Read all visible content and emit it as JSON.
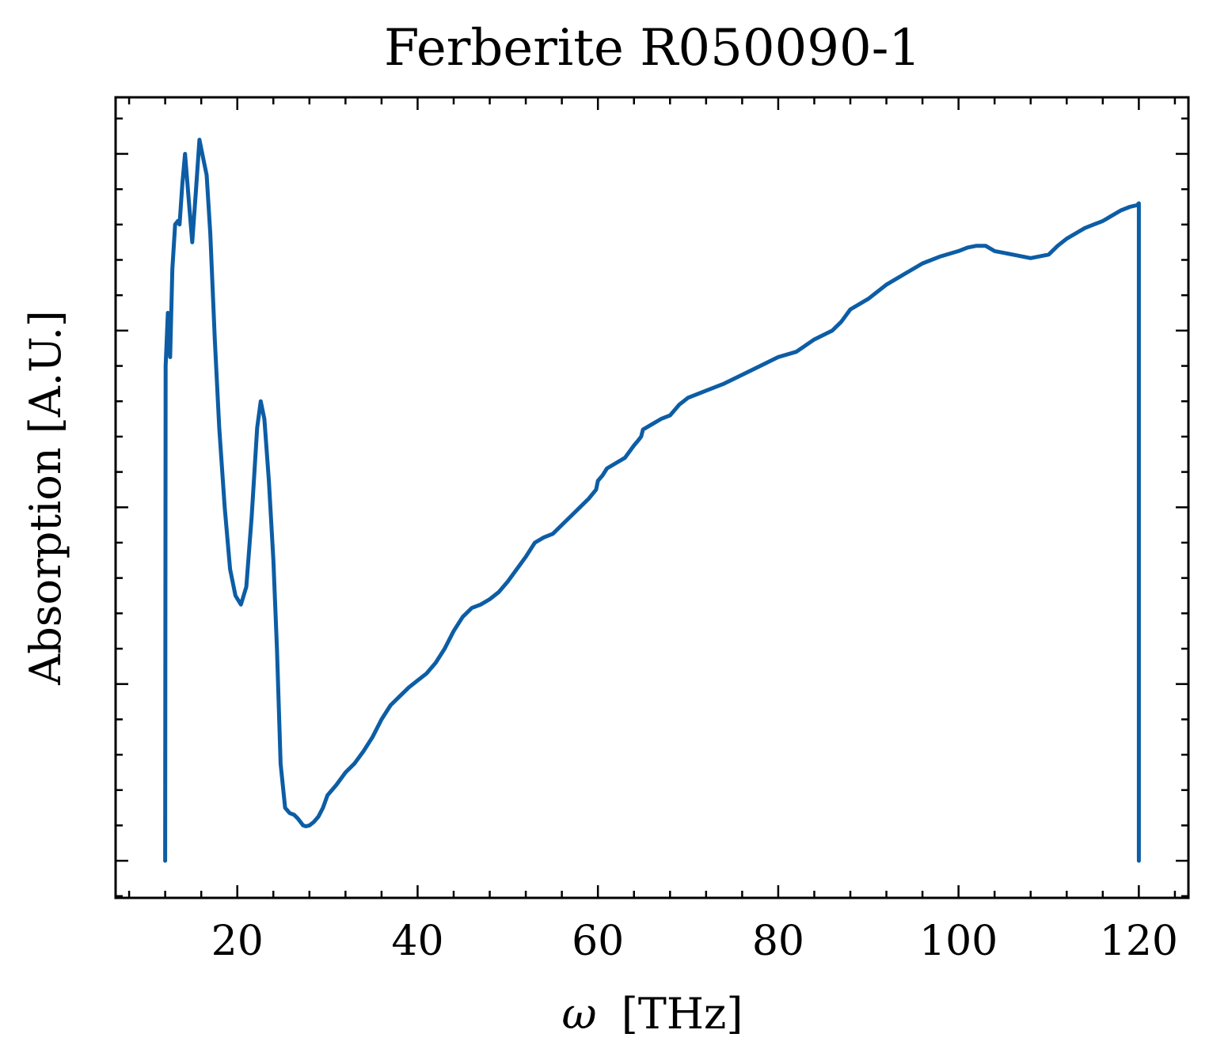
{
  "chart_data": {
    "type": "line",
    "title": "Ferberite R050090-1",
    "xlabel_symbol": "ω",
    "xlabel_unit": "[THz]",
    "ylabel": "Absorption [A.U.]",
    "xlim": [
      6.5,
      125.5
    ],
    "ylim": [
      -0.21,
      4.32
    ],
    "x_ticks": [
      20,
      40,
      60,
      80,
      100,
      120
    ],
    "x_tick_labels": [
      "20",
      "40",
      "60",
      "80",
      "100",
      "120"
    ],
    "y_major_ticks": [
      0,
      1,
      2,
      3,
      4
    ],
    "y_minor_step": 0.2,
    "x_minor_step": 4,
    "grid": false,
    "tick_direction": "in",
    "series": [
      {
        "color": "#0c5da5",
        "x": [
          12.0,
          12.05,
          12.3,
          12.55,
          12.8,
          13.1,
          13.4,
          13.6,
          13.9,
          14.2,
          14.6,
          15.0,
          15.4,
          15.8,
          16.2,
          16.6,
          17.0,
          17.5,
          18.0,
          18.6,
          19.2,
          19.8,
          20.4,
          21.0,
          21.6,
          22.2,
          22.6,
          23.0,
          23.5,
          24.0,
          24.4,
          24.8,
          25.3,
          25.8,
          26.3,
          26.7,
          27.0,
          27.3,
          27.6,
          28.0,
          28.5,
          29.0,
          29.5,
          30.0,
          31.0,
          32.0,
          33.0,
          34.0,
          35.0,
          36.0,
          37.0,
          38.0,
          39.0,
          40.0,
          41.0,
          42.0,
          43.0,
          44.0,
          45.0,
          46.0,
          47.0,
          48.0,
          49.0,
          50.0,
          51.0,
          52.0,
          53.0,
          54.0,
          55.0,
          56.0,
          57.0,
          58.0,
          59.0,
          59.8,
          60.0,
          60.5,
          61.0,
          62.0,
          63.0,
          64.0,
          64.5,
          64.8,
          65.0,
          66.0,
          67.0,
          68.0,
          69.0,
          70.0,
          72.0,
          74.0,
          76.0,
          78.0,
          80.0,
          82.0,
          84.0,
          86.0,
          87.0,
          88.0,
          90.0,
          92.0,
          94.0,
          96.0,
          98.0,
          100.0,
          101.0,
          102.0,
          103.0,
          104.0,
          105.0,
          106.0,
          107.0,
          108.0,
          109.0,
          110.0,
          111.0,
          112.0,
          113.0,
          114.0,
          115.0,
          116.0,
          117.0,
          118.0,
          119.0,
          119.8,
          120.0,
          120.0
        ],
        "y": [
          0.0,
          2.8,
          3.1,
          2.85,
          3.35,
          3.6,
          3.62,
          3.6,
          3.83,
          4.0,
          3.75,
          3.5,
          3.78,
          4.08,
          3.98,
          3.88,
          3.55,
          2.95,
          2.45,
          2.0,
          1.65,
          1.5,
          1.45,
          1.55,
          1.95,
          2.45,
          2.6,
          2.5,
          2.15,
          1.7,
          1.2,
          0.55,
          0.3,
          0.27,
          0.26,
          0.24,
          0.22,
          0.2,
          0.195,
          0.2,
          0.22,
          0.25,
          0.3,
          0.37,
          0.43,
          0.5,
          0.55,
          0.62,
          0.7,
          0.8,
          0.88,
          0.93,
          0.98,
          1.02,
          1.06,
          1.12,
          1.2,
          1.3,
          1.38,
          1.43,
          1.45,
          1.48,
          1.52,
          1.58,
          1.65,
          1.72,
          1.8,
          1.83,
          1.85,
          1.9,
          1.95,
          2.0,
          2.05,
          2.1,
          2.15,
          2.18,
          2.22,
          2.25,
          2.28,
          2.35,
          2.38,
          2.4,
          2.44,
          2.47,
          2.5,
          2.52,
          2.58,
          2.62,
          2.66,
          2.7,
          2.75,
          2.8,
          2.85,
          2.88,
          2.95,
          3.0,
          3.05,
          3.12,
          3.18,
          3.26,
          3.32,
          3.38,
          3.42,
          3.45,
          3.47,
          3.48,
          3.48,
          3.45,
          3.44,
          3.43,
          3.42,
          3.41,
          3.42,
          3.43,
          3.48,
          3.52,
          3.55,
          3.58,
          3.6,
          3.62,
          3.65,
          3.68,
          3.7,
          3.71,
          3.72,
          0.0
        ]
      }
    ]
  }
}
